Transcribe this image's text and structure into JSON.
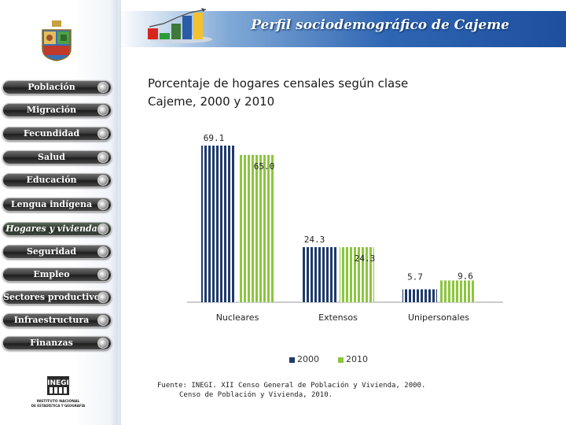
{
  "header": {
    "title": "Perfil sociodemográfico de Cajeme"
  },
  "sidebar": {
    "items": [
      {
        "label": "Población",
        "active": false
      },
      {
        "label": "Migración",
        "active": false
      },
      {
        "label": "Fecundidad",
        "active": false
      },
      {
        "label": "Salud",
        "active": false
      },
      {
        "label": "Educación",
        "active": false
      },
      {
        "label": "Lengua indígena",
        "active": false
      },
      {
        "label": "Hogares y vivienda",
        "active": true
      },
      {
        "label": "Seguridad",
        "active": false
      },
      {
        "label": "Empleo",
        "active": false
      },
      {
        "label": "Sectores productivos",
        "active": false
      },
      {
        "label": "Infraestructura",
        "active": false
      },
      {
        "label": "Finanzas",
        "active": false
      }
    ]
  },
  "logo": {
    "acronym": "INEGI",
    "line1": "INSTITUTO NACIONAL",
    "line2": "DE ESTADÍSTICA Y GEOGRAFÍA"
  },
  "chart_title": {
    "line1": "Porcentaje de hogares censales según clase",
    "line2": "Cajeme, 2000 y 2010"
  },
  "chart_data": {
    "type": "bar",
    "categories": [
      "Nucleares",
      "Extensos",
      "Unipersonales"
    ],
    "series": [
      {
        "name": "2000",
        "values": [
          69.1,
          24.3,
          5.7
        ],
        "color": "#1f3a6b"
      },
      {
        "name": "2010",
        "values": [
          65.0,
          24.3,
          9.6
        ],
        "color": "#8cc63e"
      }
    ],
    "value_labels": [
      [
        "69.1",
        "24.3",
        "5.7"
      ],
      [
        "65.0",
        "24.3",
        "9.6"
      ]
    ],
    "ylim": [
      0,
      75
    ],
    "legend_position": "bottom-center",
    "grid": false
  },
  "source": {
    "line1": "Fuente: INEGI. XII Censo General de Población y Vivienda, 2000.",
    "line2": "Censo de Población y Vivienda, 2010."
  },
  "colors": {
    "header_blue": "#2f66b3",
    "series_2000": "#1f3a6b",
    "series_2010": "#8cc63e",
    "nav_dark": "#2b2b2b"
  }
}
